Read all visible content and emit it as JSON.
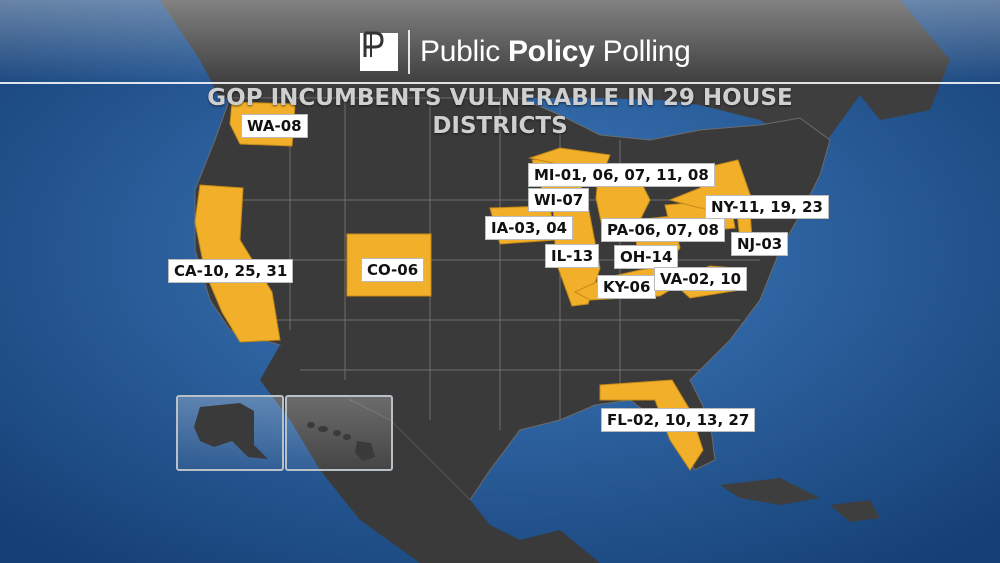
{
  "brand": {
    "mark": "PP",
    "name_prefix": "Public ",
    "name_bold": "Policy",
    "name_suffix": " Polling"
  },
  "headline": {
    "line1": "GOP INCUMBENTS VULNERABLE IN 29 HOUSE",
    "line2": "DISTRICTS"
  },
  "colors": {
    "ocean": "#2b64a6",
    "land": "#3a3a3a",
    "highlight": "#f2b02a",
    "border": "#8a8a8a"
  },
  "map": {
    "highlighted_states": [
      "Washington",
      "California",
      "Colorado",
      "Iowa",
      "Wisconsin",
      "Illinois",
      "Michigan",
      "Ohio",
      "Kentucky",
      "Pennsylvania",
      "New York",
      "New Jersey",
      "Virginia",
      "Florida"
    ],
    "insets": [
      "Alaska",
      "Hawaii"
    ]
  },
  "labels": {
    "wa": "WA-08",
    "ca": "CA-10, 25, 31",
    "co": "CO-06",
    "mi": "MI-01, 06, 07, 11, 08",
    "wi": "WI-07",
    "ia": "IA-03, 04",
    "il": "IL-13",
    "pa": "PA-06, 07, 08",
    "ny": "NY-11, 19, 23",
    "nj": "NJ-03",
    "oh": "OH-14",
    "ky": "KY-06",
    "va": "VA-02, 10",
    "fl": "FL-02, 10, 13, 27"
  }
}
